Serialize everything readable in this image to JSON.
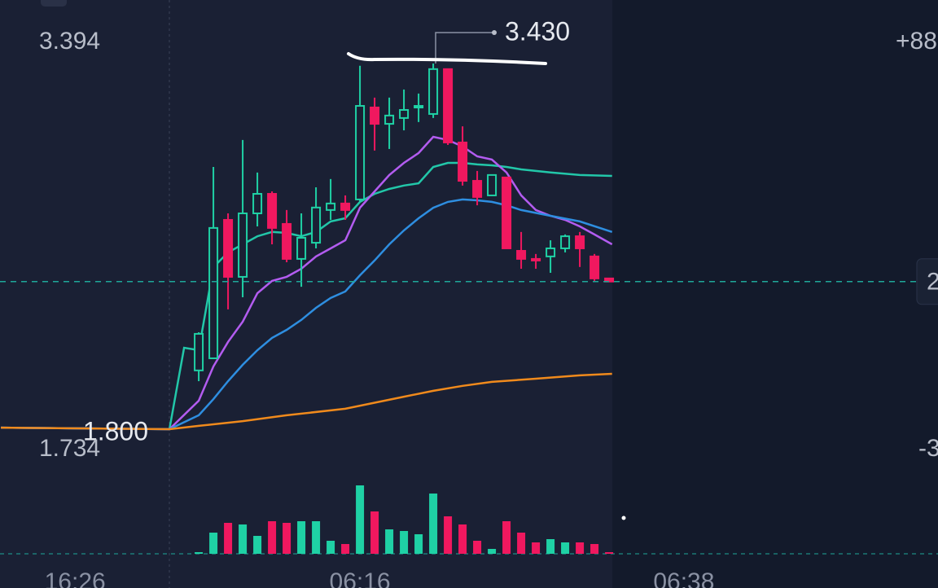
{
  "chart_data": {
    "type": "candlestick",
    "price_labels": [
      "3.394",
      "1.734"
    ],
    "right_labels": [
      "+88",
      "-3"
    ],
    "max_label": {
      "value": 3.43,
      "label": "3.430"
    },
    "min_label": {
      "value": 1.8,
      "label": "1.800"
    },
    "last_price": {
      "value": 2.458,
      "label": "2"
    },
    "xlim": [
      -13.56,
      50.44
    ],
    "ylim": [
      1.535,
      3.713
    ],
    "xticks": [
      {
        "value": -8.44,
        "label": "16:26"
      },
      {
        "value": 11,
        "label": "06:16"
      },
      {
        "value": 33.1,
        "label": "06:38"
      }
    ],
    "up_color": "#1fd1a5",
    "down_color": "#f0185f",
    "x": [
      0,
      1,
      2,
      3,
      4,
      5,
      6,
      7,
      8,
      9,
      10,
      11,
      12,
      13,
      14,
      15,
      16,
      17,
      18,
      19,
      20,
      21,
      22,
      23,
      24,
      25,
      26,
      27,
      28
    ],
    "open": [
      2.062,
      2.116,
      2.733,
      2.479,
      2.762,
      2.849,
      2.715,
      2.559,
      2.631,
      2.777,
      2.806,
      2.824,
      3.234,
      3.161,
      3.187,
      3.234,
      3.205,
      3.405,
      3.078,
      2.907,
      2.842,
      2.922,
      2.595,
      2.559,
      2.57,
      2.606,
      2.66,
      2.57,
      2.472
    ],
    "high": [
      2.232,
      2.969,
      2.762,
      3.089,
      2.944,
      2.86,
      2.777,
      2.762,
      2.878,
      2.915,
      2.842,
      3.42,
      3.278,
      3.278,
      3.314,
      3.296,
      3.43,
      3.405,
      3.15,
      2.951,
      2.933,
      2.922,
      2.679,
      2.581,
      2.642,
      2.668,
      2.679,
      2.581,
      2.472
    ],
    "low": [
      2.014,
      2.116,
      2.334,
      2.388,
      2.704,
      2.624,
      2.544,
      2.435,
      2.606,
      2.733,
      2.733,
      2.813,
      3.042,
      3.049,
      3.132,
      3.169,
      3.187,
      3.067,
      2.886,
      2.798,
      2.842,
      2.606,
      2.515,
      2.515,
      2.497,
      2.588,
      2.523,
      2.461,
      2.458
    ],
    "close": [
      2.225,
      2.697,
      2.479,
      2.762,
      2.849,
      2.697,
      2.559,
      2.653,
      2.788,
      2.806,
      2.777,
      3.241,
      3.161,
      3.198,
      3.223,
      3.241,
      3.405,
      3.078,
      2.907,
      2.835,
      2.933,
      2.606,
      2.559,
      2.552,
      2.606,
      2.66,
      2.606,
      2.472,
      2.458
    ],
    "volume": {
      "values": [
        2,
        26,
        38,
        36,
        22,
        40,
        38,
        40,
        40,
        16,
        12,
        84,
        52,
        30,
        28,
        24,
        74,
        46,
        36,
        16,
        6,
        40,
        26,
        14,
        18,
        14,
        14,
        12,
        2
      ],
      "ylim": [
        0,
        100
      ]
    },
    "series": [
      {
        "color": "#22c7a9",
        "x": [
          -13.5,
          -2,
          -1,
          0,
          1,
          2,
          4,
          5,
          6,
          7,
          8,
          9,
          10,
          11,
          12,
          13,
          14,
          15,
          16,
          17,
          18,
          19,
          20,
          21,
          22,
          24,
          26,
          28.2
        ],
        "values": [
          1.807,
          1.8,
          2.163,
          2.152,
          2.522,
          2.588,
          2.66,
          2.679,
          2.675,
          2.66,
          2.679,
          2.726,
          2.74,
          2.813,
          2.849,
          2.871,
          2.886,
          2.896,
          2.969,
          2.987,
          2.987,
          2.98,
          2.976,
          2.969,
          2.958,
          2.944,
          2.933,
          2.929
        ]
      },
      {
        "color": "#b35cf0",
        "x": [
          -13.5,
          -2,
          0,
          1,
          2,
          3,
          4,
          5,
          6,
          7,
          8,
          9,
          10,
          11,
          12,
          13,
          14,
          15,
          16,
          17,
          18,
          19,
          20,
          21,
          22,
          23,
          24,
          25,
          26,
          27,
          28.2
        ],
        "values": [
          1.807,
          1.8,
          1.927,
          2.08,
          2.189,
          2.279,
          2.406,
          2.461,
          2.479,
          2.515,
          2.57,
          2.606,
          2.642,
          2.787,
          2.86,
          2.933,
          2.987,
          3.031,
          3.103,
          3.089,
          3.06,
          3.016,
          3.002,
          2.944,
          2.842,
          2.777,
          2.751,
          2.733,
          2.704,
          2.668,
          2.624
        ]
      },
      {
        "color": "#2e8ee0",
        "x": [
          -13.5,
          -2,
          0,
          1,
          2,
          3,
          4,
          5,
          6,
          7,
          8,
          9,
          10,
          11,
          12,
          13,
          14,
          15,
          16,
          17,
          18,
          19,
          20,
          21,
          22,
          24,
          26,
          28.2
        ],
        "values": [
          1.807,
          1.8,
          1.862,
          1.934,
          2.014,
          2.087,
          2.152,
          2.207,
          2.243,
          2.287,
          2.341,
          2.385,
          2.414,
          2.486,
          2.552,
          2.624,
          2.686,
          2.74,
          2.787,
          2.813,
          2.824,
          2.82,
          2.813,
          2.798,
          2.777,
          2.751,
          2.726,
          2.679
        ]
      },
      {
        "color": "#f08a1c",
        "x": [
          -13.5,
          -2,
          0,
          3,
          6,
          10,
          14,
          16,
          18,
          20,
          23,
          26,
          28.2
        ],
        "values": [
          1.807,
          1.8,
          1.815,
          1.836,
          1.862,
          1.891,
          1.945,
          1.971,
          1.993,
          2.011,
          2.025,
          2.04,
          2.047
        ]
      }
    ]
  }
}
